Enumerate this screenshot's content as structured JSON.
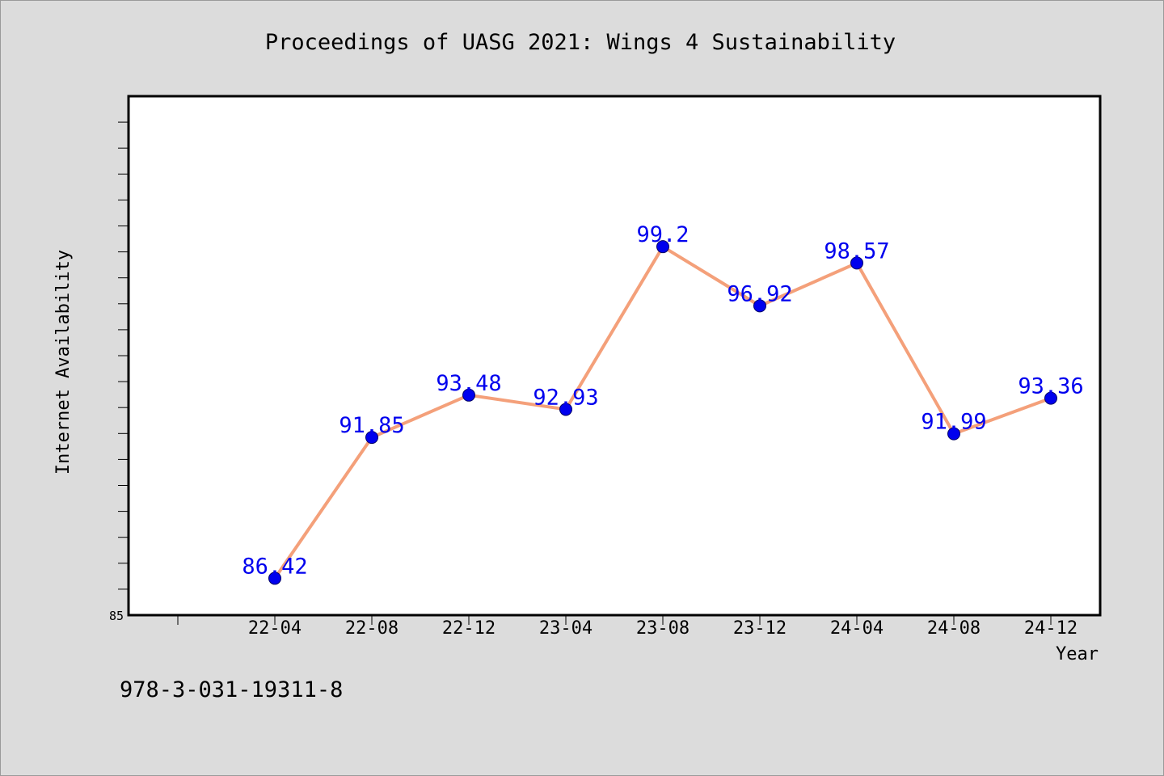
{
  "chart_data": {
    "type": "line",
    "title": "Proceedings of UASG 2021: Wings 4 Sustainability",
    "xlabel": "Year",
    "ylabel": "Internet Availability",
    "categories": [
      "22-04",
      "22-08",
      "22-12",
      "23-04",
      "23-08",
      "23-12",
      "24-04",
      "24-08",
      "24-12"
    ],
    "values": [
      86.42,
      91.85,
      93.48,
      92.93,
      99.2,
      96.92,
      98.57,
      91.99,
      93.36
    ],
    "data_labels": [
      "86.42",
      "91.85",
      "93.48",
      "92.93",
      "99.2",
      "96.92",
      "98.57",
      "91.99",
      "93.36"
    ],
    "ylim": [
      85,
      105
    ],
    "y_tick_labels": [
      "85"
    ],
    "grid": false,
    "line_color": "#f4a07a",
    "marker_color": "#0000ee",
    "label_color": "#0000ee"
  },
  "footer": {
    "isbn": "978-3-031-19311-8"
  }
}
